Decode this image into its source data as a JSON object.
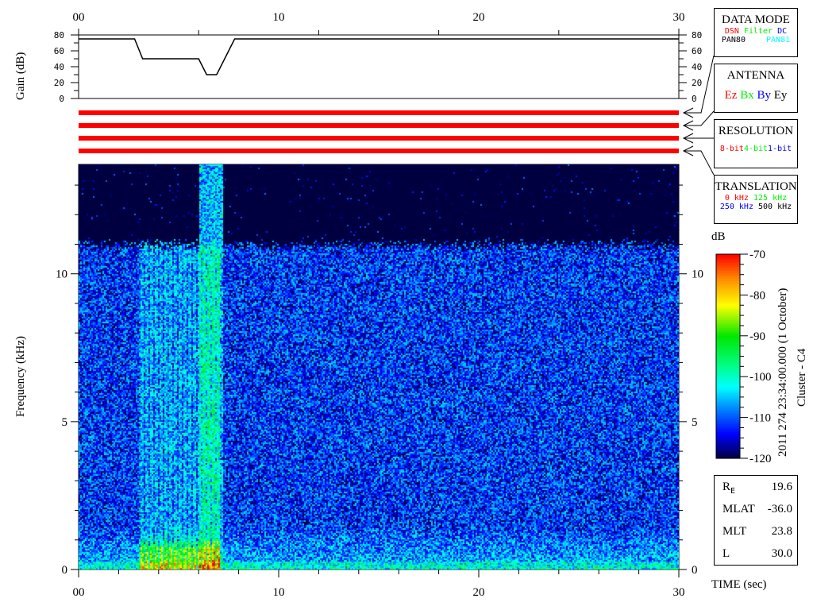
{
  "chart_data": {
    "type": "heatmap",
    "xlabel": "TIME (sec)",
    "ylabel": "Frequency (kHz)",
    "xlim": [
      0,
      30
    ],
    "ylim": [
      0,
      13.7
    ],
    "x_tick_labels": [
      "00",
      "10",
      "20",
      "30"
    ],
    "x_ticks": [
      0,
      10,
      20,
      30
    ],
    "y_tick_labels": [
      "0",
      "5",
      "10"
    ],
    "y_ticks": [
      0,
      5,
      10
    ],
    "colorbar": {
      "label": "dB",
      "range": [
        -120,
        -70
      ],
      "ticks": [
        -70,
        -80,
        -90,
        -100,
        -110,
        -120
      ],
      "tick_labels": [
        "-70",
        "-80",
        "-90",
        "-100",
        "-110",
        "-120"
      ]
    },
    "features": {
      "noise_floor_db": -112,
      "noise_top_khz": 11,
      "burst_start_s": 3,
      "burst_end_s": 7,
      "burst_tall_start_s": 6,
      "burst_tall_end_s": 7.2
    },
    "gain_panel": {
      "ylabel": "Gain (dB)",
      "ylim": [
        0,
        80
      ],
      "y_tick_labels": [
        "0",
        "20",
        "40",
        "60",
        "80"
      ],
      "y_ticks": [
        0,
        20,
        40,
        60,
        80
      ],
      "points": [
        [
          0,
          75
        ],
        [
          2.8,
          75
        ],
        [
          3.2,
          50
        ],
        [
          6.0,
          50
        ],
        [
          6.4,
          30
        ],
        [
          6.9,
          30
        ],
        [
          7.8,
          75
        ],
        [
          30,
          75
        ]
      ]
    }
  },
  "status_bars": {
    "count": 4,
    "color": "#ff0000"
  },
  "data_mode": {
    "title": "DATA MODE",
    "items": [
      {
        "t": "DSN",
        "c": "#ff0000"
      },
      {
        "t": "Filter",
        "c": "#00ee00"
      },
      {
        "t": "DC",
        "c": "#0000ff"
      }
    ],
    "items2": [
      {
        "t": "PAN80",
        "c": "#000000"
      },
      {
        "t": "PAN81",
        "c": "#00ffff"
      }
    ]
  },
  "antenna": {
    "title": "ANTENNA",
    "items": [
      {
        "t": "Ez",
        "c": "#ff0000"
      },
      {
        "t": "Bx",
        "c": "#00ee00"
      },
      {
        "t": "By",
        "c": "#0000ff"
      },
      {
        "t": "Ey",
        "c": "#000000"
      }
    ]
  },
  "resolution": {
    "title": "RESOLUTION",
    "items": [
      {
        "t": "8-bit",
        "c": "#ff0000"
      },
      {
        "t": "4-bit",
        "c": "#00ee00"
      },
      {
        "t": "1-bit",
        "c": "#0000ff"
      }
    ]
  },
  "translation": {
    "title": "TRANSLATION",
    "items": [
      {
        "t": "0 kHz",
        "c": "#ff0000"
      },
      {
        "t": "125 kHz",
        "c": "#00ee00"
      }
    ],
    "items2": [
      {
        "t": "250 kHz",
        "c": "#0000ff"
      },
      {
        "t": "500 kHz",
        "c": "#000000"
      }
    ]
  },
  "timestamp": "2011 274 23:34:00.000 (1 October)",
  "spacecraft": "Cluster - C4",
  "ephemeris": [
    {
      "k": "R",
      "sub": "E",
      "v": "19.6"
    },
    {
      "k": "MLAT",
      "v": "-36.0"
    },
    {
      "k": "MLT",
      "v": "23.8"
    },
    {
      "k": "L",
      "v": "30.0"
    }
  ]
}
